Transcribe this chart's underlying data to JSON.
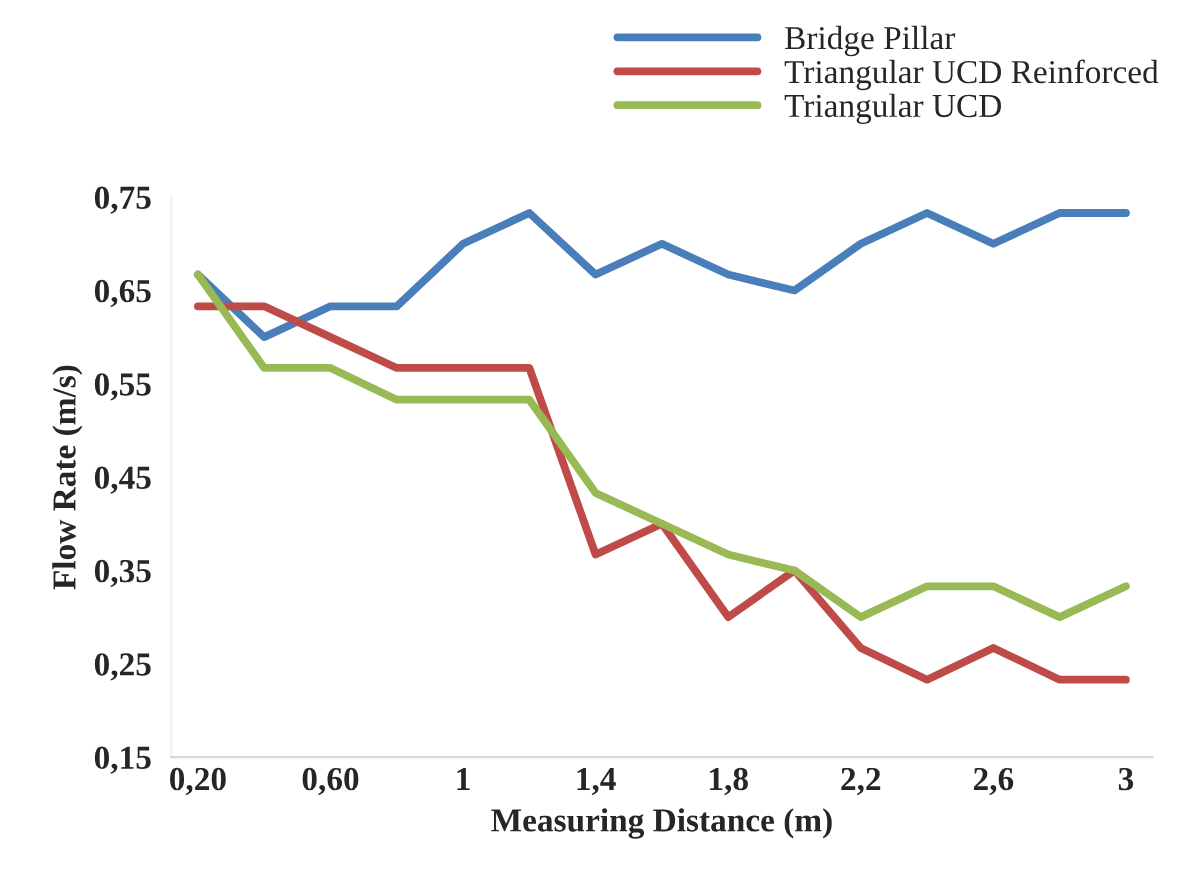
{
  "chart_data": {
    "type": "line",
    "xlabel": "Measuring Distance (m)",
    "ylabel": "Flow Rate (m/s)",
    "categories": [
      "0,20",
      null,
      "0,60",
      null,
      "1",
      null,
      "1,4",
      null,
      "1,8",
      null,
      "2,2",
      null,
      "2,6",
      null,
      "3"
    ],
    "series": [
      {
        "name": "Bridge Pillar",
        "color": "#4a7ebb",
        "values": [
          0.667,
          0.6,
          0.633,
          0.633,
          0.7,
          0.733,
          0.667,
          0.7,
          0.667,
          0.65,
          0.7,
          0.733,
          0.7,
          0.733,
          0.733
        ]
      },
      {
        "name": "Triangular UCD Reinforced",
        "color": "#be4b48",
        "values": [
          0.633,
          0.633,
          0.6,
          0.567,
          0.567,
          0.567,
          0.367,
          0.4,
          0.3,
          0.35,
          0.267,
          0.233,
          0.267,
          0.233,
          0.233
        ]
      },
      {
        "name": "Triangular UCD",
        "color": "#98b954",
        "values": [
          0.667,
          0.567,
          0.567,
          0.533,
          0.533,
          0.533,
          0.433,
          0.4,
          0.367,
          0.35,
          0.3,
          0.333,
          0.333,
          0.3,
          0.333
        ]
      }
    ],
    "ylim": [
      0.15,
      0.75
    ],
    "yticks": [
      {
        "value": 0.15,
        "label": "0,15"
      },
      {
        "value": 0.25,
        "label": "0,25"
      },
      {
        "value": 0.35,
        "label": "0,35"
      },
      {
        "value": 0.45,
        "label": "0,45"
      },
      {
        "value": 0.55,
        "label": "0,55"
      },
      {
        "value": 0.65,
        "label": "0,65"
      },
      {
        "value": 0.75,
        "label": "0,75"
      }
    ],
    "legend": "top right",
    "grid": false,
    "line_style": "solid",
    "marker": "none"
  }
}
